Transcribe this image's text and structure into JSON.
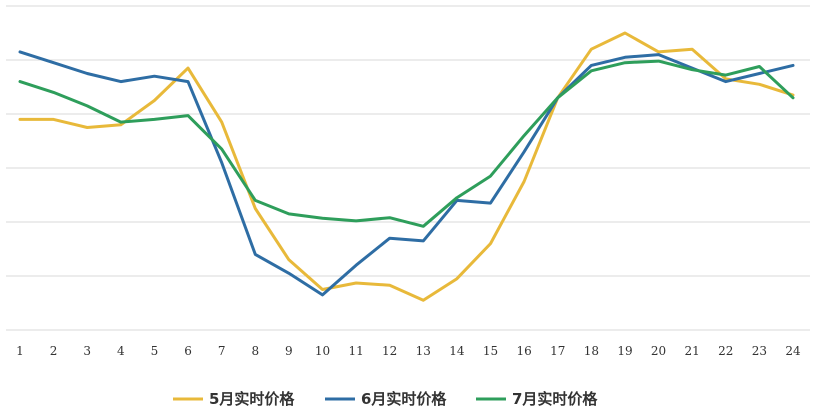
{
  "chart_data": {
    "type": "line",
    "title": "",
    "xlabel": "",
    "ylabel": "",
    "categories": [
      "1",
      "2",
      "3",
      "4",
      "5",
      "6",
      "7",
      "8",
      "9",
      "10",
      "11",
      "12",
      "13",
      "14",
      "15",
      "16",
      "17",
      "18",
      "19",
      "20",
      "21",
      "22",
      "23",
      "24"
    ],
    "ylim": [
      0,
      6
    ],
    "y_ticks_visible": false,
    "grid": "horizontal",
    "legend_position": "bottom",
    "series": [
      {
        "name": "5月实时价格",
        "color": "#E8B93A",
        "values": [
          3.9,
          3.9,
          3.75,
          3.8,
          4.25,
          4.85,
          3.85,
          2.25,
          1.3,
          0.75,
          0.87,
          0.83,
          0.55,
          0.95,
          1.6,
          2.75,
          4.3,
          5.2,
          5.5,
          5.15,
          5.2,
          4.65,
          4.55,
          4.35
        ]
      },
      {
        "name": "6月实时价格",
        "color": "#2E6DA4",
        "values": [
          5.15,
          4.95,
          4.75,
          4.6,
          4.7,
          4.6,
          3.1,
          1.4,
          1.05,
          0.65,
          1.2,
          1.7,
          1.65,
          2.4,
          2.35,
          3.3,
          4.3,
          4.9,
          5.05,
          5.1,
          4.85,
          4.6,
          4.75,
          4.9
        ]
      },
      {
        "name": "7月实时价格",
        "color": "#2E9E5B",
        "values": [
          4.6,
          4.4,
          4.15,
          3.85,
          3.9,
          3.97,
          3.35,
          2.4,
          2.15,
          2.07,
          2.02,
          2.08,
          1.92,
          2.45,
          2.85,
          3.6,
          4.3,
          4.8,
          4.95,
          4.98,
          4.82,
          4.72,
          4.88,
          4.3
        ]
      }
    ]
  }
}
